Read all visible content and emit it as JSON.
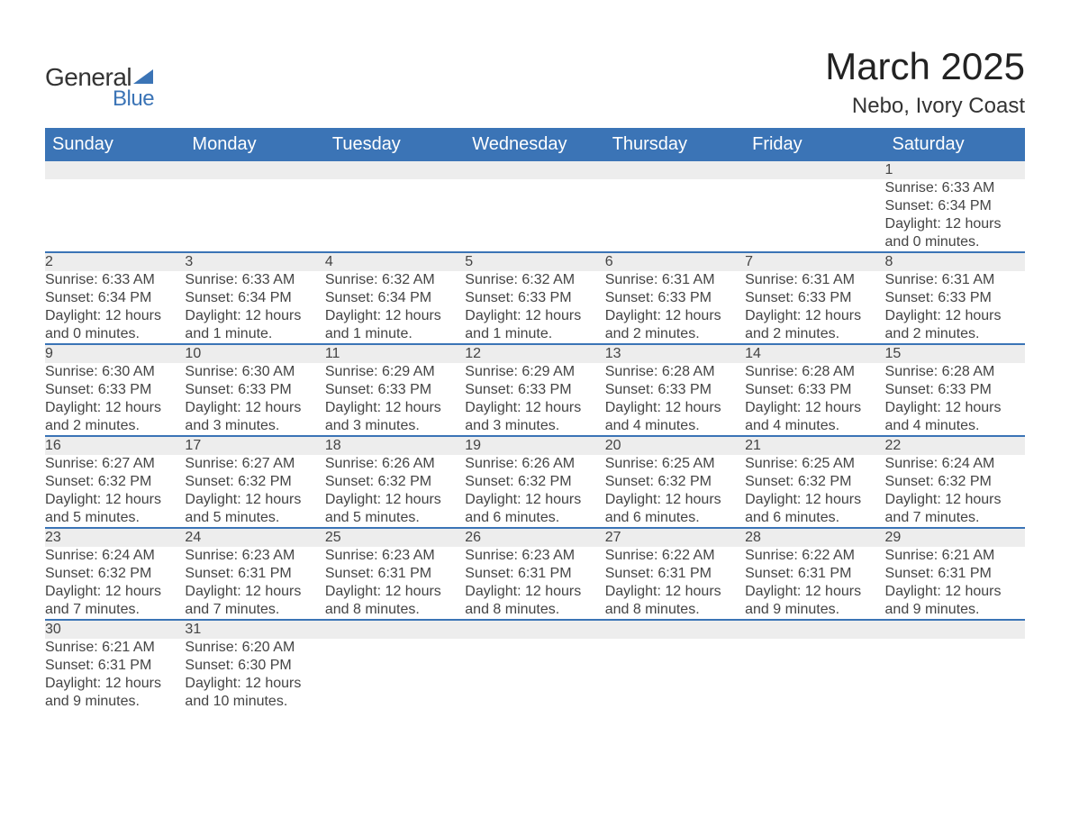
{
  "logo": {
    "word1": "General",
    "word2": "Blue",
    "accent_color": "#3b74b6",
    "text_color": "#333333"
  },
  "header": {
    "month_title": "March 2025",
    "location": "Nebo, Ivory Coast"
  },
  "colors": {
    "header_bg": "#3b74b6",
    "row_separator": "#3b74b6",
    "daynum_bg": "#ededed",
    "page_bg": "#ffffff",
    "text": "#444444"
  },
  "weekdays": [
    "Sunday",
    "Monday",
    "Tuesday",
    "Wednesday",
    "Thursday",
    "Friday",
    "Saturday"
  ],
  "weeks": [
    {
      "nums": [
        "",
        "",
        "",
        "",
        "",
        "",
        "1"
      ],
      "cells": [
        null,
        null,
        null,
        null,
        null,
        null,
        {
          "sunrise": "Sunrise: 6:33 AM",
          "sunset": "Sunset: 6:34 PM",
          "day": "Daylight: 12 hours and 0 minutes."
        }
      ]
    },
    {
      "nums": [
        "2",
        "3",
        "4",
        "5",
        "6",
        "7",
        "8"
      ],
      "cells": [
        {
          "sunrise": "Sunrise: 6:33 AM",
          "sunset": "Sunset: 6:34 PM",
          "day": "Daylight: 12 hours and 0 minutes."
        },
        {
          "sunrise": "Sunrise: 6:33 AM",
          "sunset": "Sunset: 6:34 PM",
          "day": "Daylight: 12 hours and 1 minute."
        },
        {
          "sunrise": "Sunrise: 6:32 AM",
          "sunset": "Sunset: 6:34 PM",
          "day": "Daylight: 12 hours and 1 minute."
        },
        {
          "sunrise": "Sunrise: 6:32 AM",
          "sunset": "Sunset: 6:33 PM",
          "day": "Daylight: 12 hours and 1 minute."
        },
        {
          "sunrise": "Sunrise: 6:31 AM",
          "sunset": "Sunset: 6:33 PM",
          "day": "Daylight: 12 hours and 2 minutes."
        },
        {
          "sunrise": "Sunrise: 6:31 AM",
          "sunset": "Sunset: 6:33 PM",
          "day": "Daylight: 12 hours and 2 minutes."
        },
        {
          "sunrise": "Sunrise: 6:31 AM",
          "sunset": "Sunset: 6:33 PM",
          "day": "Daylight: 12 hours and 2 minutes."
        }
      ]
    },
    {
      "nums": [
        "9",
        "10",
        "11",
        "12",
        "13",
        "14",
        "15"
      ],
      "cells": [
        {
          "sunrise": "Sunrise: 6:30 AM",
          "sunset": "Sunset: 6:33 PM",
          "day": "Daylight: 12 hours and 2 minutes."
        },
        {
          "sunrise": "Sunrise: 6:30 AM",
          "sunset": "Sunset: 6:33 PM",
          "day": "Daylight: 12 hours and 3 minutes."
        },
        {
          "sunrise": "Sunrise: 6:29 AM",
          "sunset": "Sunset: 6:33 PM",
          "day": "Daylight: 12 hours and 3 minutes."
        },
        {
          "sunrise": "Sunrise: 6:29 AM",
          "sunset": "Sunset: 6:33 PM",
          "day": "Daylight: 12 hours and 3 minutes."
        },
        {
          "sunrise": "Sunrise: 6:28 AM",
          "sunset": "Sunset: 6:33 PM",
          "day": "Daylight: 12 hours and 4 minutes."
        },
        {
          "sunrise": "Sunrise: 6:28 AM",
          "sunset": "Sunset: 6:33 PM",
          "day": "Daylight: 12 hours and 4 minutes."
        },
        {
          "sunrise": "Sunrise: 6:28 AM",
          "sunset": "Sunset: 6:33 PM",
          "day": "Daylight: 12 hours and 4 minutes."
        }
      ]
    },
    {
      "nums": [
        "16",
        "17",
        "18",
        "19",
        "20",
        "21",
        "22"
      ],
      "cells": [
        {
          "sunrise": "Sunrise: 6:27 AM",
          "sunset": "Sunset: 6:32 PM",
          "day": "Daylight: 12 hours and 5 minutes."
        },
        {
          "sunrise": "Sunrise: 6:27 AM",
          "sunset": "Sunset: 6:32 PM",
          "day": "Daylight: 12 hours and 5 minutes."
        },
        {
          "sunrise": "Sunrise: 6:26 AM",
          "sunset": "Sunset: 6:32 PM",
          "day": "Daylight: 12 hours and 5 minutes."
        },
        {
          "sunrise": "Sunrise: 6:26 AM",
          "sunset": "Sunset: 6:32 PM",
          "day": "Daylight: 12 hours and 6 minutes."
        },
        {
          "sunrise": "Sunrise: 6:25 AM",
          "sunset": "Sunset: 6:32 PM",
          "day": "Daylight: 12 hours and 6 minutes."
        },
        {
          "sunrise": "Sunrise: 6:25 AM",
          "sunset": "Sunset: 6:32 PM",
          "day": "Daylight: 12 hours and 6 minutes."
        },
        {
          "sunrise": "Sunrise: 6:24 AM",
          "sunset": "Sunset: 6:32 PM",
          "day": "Daylight: 12 hours and 7 minutes."
        }
      ]
    },
    {
      "nums": [
        "23",
        "24",
        "25",
        "26",
        "27",
        "28",
        "29"
      ],
      "cells": [
        {
          "sunrise": "Sunrise: 6:24 AM",
          "sunset": "Sunset: 6:32 PM",
          "day": "Daylight: 12 hours and 7 minutes."
        },
        {
          "sunrise": "Sunrise: 6:23 AM",
          "sunset": "Sunset: 6:31 PM",
          "day": "Daylight: 12 hours and 7 minutes."
        },
        {
          "sunrise": "Sunrise: 6:23 AM",
          "sunset": "Sunset: 6:31 PM",
          "day": "Daylight: 12 hours and 8 minutes."
        },
        {
          "sunrise": "Sunrise: 6:23 AM",
          "sunset": "Sunset: 6:31 PM",
          "day": "Daylight: 12 hours and 8 minutes."
        },
        {
          "sunrise": "Sunrise: 6:22 AM",
          "sunset": "Sunset: 6:31 PM",
          "day": "Daylight: 12 hours and 8 minutes."
        },
        {
          "sunrise": "Sunrise: 6:22 AM",
          "sunset": "Sunset: 6:31 PM",
          "day": "Daylight: 12 hours and 9 minutes."
        },
        {
          "sunrise": "Sunrise: 6:21 AM",
          "sunset": "Sunset: 6:31 PM",
          "day": "Daylight: 12 hours and 9 minutes."
        }
      ]
    },
    {
      "nums": [
        "30",
        "31",
        "",
        "",
        "",
        "",
        ""
      ],
      "cells": [
        {
          "sunrise": "Sunrise: 6:21 AM",
          "sunset": "Sunset: 6:31 PM",
          "day": "Daylight: 12 hours and 9 minutes."
        },
        {
          "sunrise": "Sunrise: 6:20 AM",
          "sunset": "Sunset: 6:30 PM",
          "day": "Daylight: 12 hours and 10 minutes."
        },
        null,
        null,
        null,
        null,
        null
      ]
    }
  ]
}
